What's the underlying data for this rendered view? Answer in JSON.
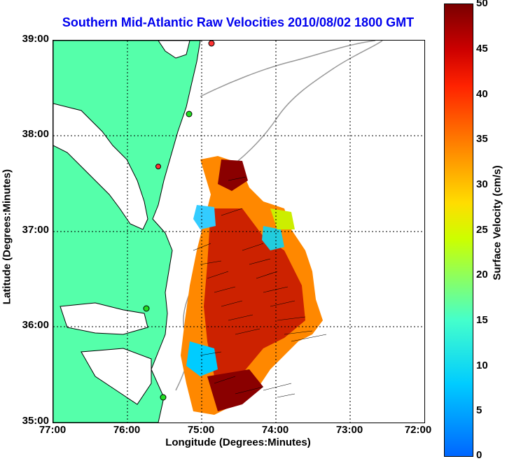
{
  "title": "Southern Mid-Atlantic Raw Velocities 2010/08/02 1800 GMT",
  "chart_data": {
    "type": "heatmap",
    "title": "Southern Mid-Atlantic Raw Velocities 2010/08/02 1800 GMT",
    "xlabel": "Longitude (Degrees:Minutes)",
    "ylabel": "Latitude (Degrees:Minutes)",
    "x_ticks": [
      "77:00",
      "76:00",
      "75:00",
      "74:00",
      "73:00",
      "72:00"
    ],
    "y_ticks": [
      "39:00",
      "38:00",
      "37:00",
      "36:00",
      "35:00"
    ],
    "xlim": [
      -77,
      -72
    ],
    "ylim": [
      35,
      39
    ],
    "colorbar": {
      "label": "Surface Velocity (cm/s)",
      "ticks": [
        "50",
        "45",
        "40",
        "35",
        "30",
        "25",
        "20",
        "15",
        "10",
        "5",
        "0"
      ],
      "range": [
        0,
        50
      ]
    },
    "grid": true
  },
  "colors": {
    "land": "#55ffaa",
    "title": "#0000ee",
    "station": "#22dd22",
    "station_red": "#ff3333"
  }
}
